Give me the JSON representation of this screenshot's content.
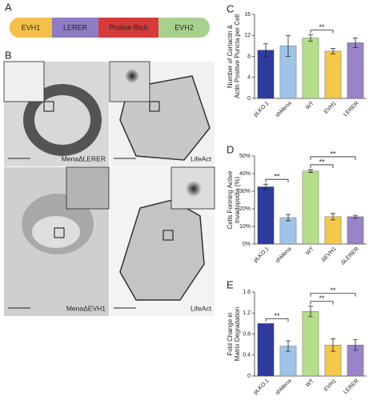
{
  "panels": [
    "A",
    "B",
    "C",
    "D",
    "E"
  ],
  "domain": {
    "segments": [
      {
        "label": "EVH1",
        "color": "#f5c04a"
      },
      {
        "label": "LERER",
        "color": "#8f7dc4"
      },
      {
        "label": "Proline Rich",
        "color": "#d63b3b"
      },
      {
        "label": "EVH2",
        "color": "#a9d18e"
      }
    ]
  },
  "images": [
    {
      "label": "MenaΔLERER"
    },
    {
      "label": "LifeAct"
    },
    {
      "label": "MenaΔEVH1"
    },
    {
      "label": "LifeAct"
    }
  ],
  "chart_data": [
    {
      "type": "bar",
      "ylabel": [
        "Number of Cortactin &",
        "Actin Positive Puncta per Cell"
      ],
      "categories": [
        "pLKO.1",
        "shMena",
        "WT",
        "EVH1",
        "LERER"
      ],
      "values": [
        9.2,
        10.0,
        11.5,
        9.0,
        10.6
      ],
      "errors": [
        1.2,
        2.0,
        0.6,
        0.5,
        0.9
      ],
      "colors": [
        "#2e3a9e",
        "#9fc4e8",
        "#b6dd8c",
        "#f5c74a",
        "#9a84c8"
      ],
      "ylim": [
        0,
        16
      ],
      "yticks": [
        0,
        4,
        8,
        12,
        16
      ],
      "annotations": [
        {
          "between": [
            "WT",
            "EVH1"
          ],
          "label": "**"
        }
      ]
    },
    {
      "type": "bar",
      "ylabel": [
        "Cells Forming Active",
        "Invadopodia (%)"
      ],
      "categories": [
        "pLKO.1",
        "shMena",
        "WT",
        "ΔEVH1",
        "ΔLERER"
      ],
      "values": [
        32.5,
        15,
        41.5,
        15.5,
        15.5
      ],
      "errors": [
        1.5,
        1.8,
        0.8,
        1.8,
        0.8
      ],
      "colors": [
        "#2e3a9e",
        "#9fc4e8",
        "#b6dd8c",
        "#f5c74a",
        "#9a84c8"
      ],
      "ylim": [
        0,
        50
      ],
      "yticks": [
        {
          "value": 0,
          "label": "0%"
        },
        {
          "value": 10,
          "label": "10%"
        },
        {
          "value": 20,
          "label": "20%"
        },
        {
          "value": 30,
          "label": "30%"
        },
        {
          "value": 40,
          "label": "40%"
        },
        {
          "value": 50,
          "label": "50%"
        }
      ],
      "annotations": [
        {
          "between": [
            "pLKO.1",
            "shMena"
          ],
          "label": "**"
        },
        {
          "between": [
            "WT",
            "ΔEVH1"
          ],
          "label": "**"
        },
        {
          "between": [
            "WT",
            "ΔLERER"
          ],
          "label": "**"
        }
      ]
    },
    {
      "type": "bar",
      "ylabel": [
        "Fold Change in",
        "Matrix Degradation"
      ],
      "categories": [
        "pLKO.1",
        "shMena",
        "WT",
        "EVH1",
        "LERER"
      ],
      "values": [
        1.0,
        0.57,
        1.23,
        0.59,
        0.59
      ],
      "errors": [
        null,
        0.1,
        0.1,
        0.12,
        0.1
      ],
      "colors": [
        "#2e3a9e",
        "#9fc4e8",
        "#b6dd8c",
        "#f5c74a",
        "#9a84c8"
      ],
      "ylim": [
        0,
        1.6
      ],
      "yticks": [
        0,
        0.4,
        0.8,
        1.2,
        1.6
      ],
      "annotations": [
        {
          "between": [
            "pLKO.1",
            "shMena"
          ],
          "label": "**"
        },
        {
          "between": [
            "WT",
            "EVH1"
          ],
          "label": "**"
        },
        {
          "between": [
            "WT",
            "LERER"
          ],
          "label": "**"
        }
      ]
    }
  ]
}
